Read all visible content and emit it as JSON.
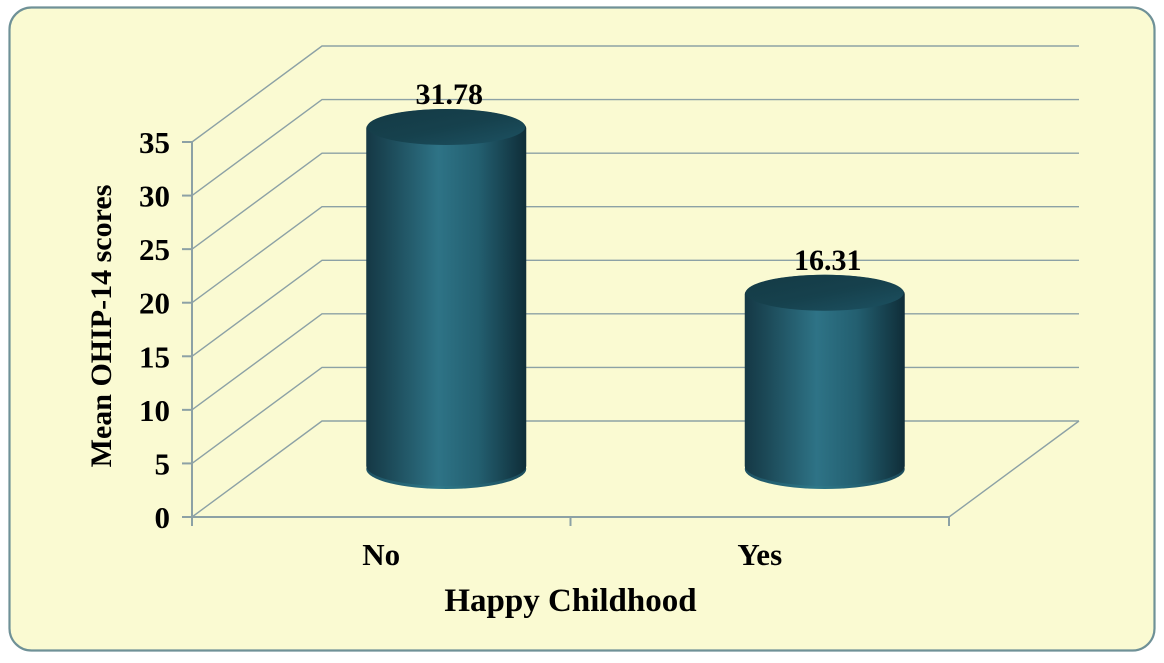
{
  "chart_data": {
    "type": "bar",
    "variant": "3d-cylinder",
    "title": "",
    "categories": [
      "No",
      "Yes"
    ],
    "values": [
      31.78,
      16.31
    ],
    "data_labels": [
      "31.78",
      "16.31"
    ],
    "xlabel": "Happy Childhood",
    "ylabel": "Mean OHIP-14 scores",
    "ylim": [
      0,
      35
    ],
    "ytick_step": 5,
    "yticks": [
      0,
      5,
      10,
      15,
      20,
      25,
      30,
      35
    ],
    "grid": true,
    "legend": false,
    "colors": {
      "page_background": "#FFFFFF",
      "chart_area_fill": "#FAFAD2",
      "chart_border": "#6F9197",
      "gridline": "#8CA1A5",
      "axis": "#8CA1A5",
      "text": "#000000",
      "cylinder_body_light": "#2E7386",
      "cylinder_body_mid": "#1B4755",
      "cylinder_body_dark": "#0F2D38",
      "cylinder_top_dark": "#163E4A",
      "cylinder_top_light": "#1E5462",
      "cylinder_bottom_light": "#2C7487"
    }
  }
}
